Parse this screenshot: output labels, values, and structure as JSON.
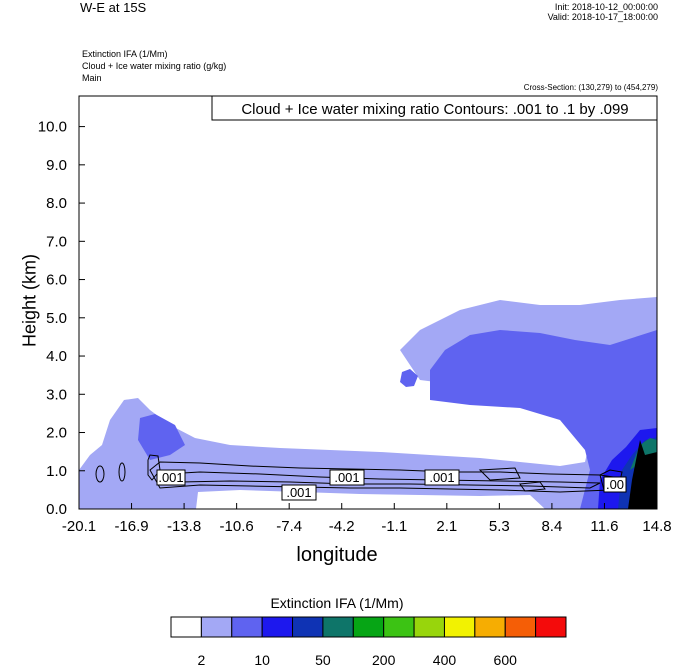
{
  "header": {
    "title": "W-E at 15S",
    "init": "Init: 2018-10-12_00:00:00",
    "valid": "Valid: 2018-10-17_18:00:00",
    "var_lines": [
      "Extinction IFA   (1/Mm)",
      "Cloud + Ice water mixing ratio   (g/kg)",
      "Main"
    ],
    "cross_section": "Cross-Section: (130,279) to (454,279)"
  },
  "contour_note": "Cloud + Ice water mixing ratio Contours: .001 to .1 by .099",
  "contour_labels": [
    ".001",
    ".001",
    ".001",
    ".001",
    ".00"
  ],
  "colorbar": {
    "title": "Extinction IFA  (1/Mm)",
    "colors": [
      "#ffffff",
      "#a3a8f5",
      "#5f63f0",
      "#1d18ee",
      "#0f33b4",
      "#0e7569",
      "#06a515",
      "#3cc314",
      "#98d50c",
      "#f2f201",
      "#f6ad02",
      "#f55e06",
      "#f40b0b"
    ],
    "tick_labels": [
      "2",
      "10",
      "50",
      "200",
      "400",
      "600"
    ]
  },
  "chart_data": {
    "type": "heatmap",
    "xlabel": "longitude",
    "ylabel": "Height (km)",
    "x_tick_labels": [
      "-20.1",
      "-16.9",
      "-13.8",
      "-10.6",
      "-7.4",
      "-4.2",
      "-1.1",
      "2.1",
      "5.3",
      "8.4",
      "11.6",
      "14.8"
    ],
    "y_tick_labels": [
      "0.0",
      "1.0",
      "2.0",
      "3.0",
      "4.0",
      "5.0",
      "6.0",
      "7.0",
      "8.0",
      "9.0",
      "10.0"
    ],
    "xlim": [
      -20.1,
      14.8
    ],
    "ylim": [
      0.0,
      10.8
    ]
  }
}
